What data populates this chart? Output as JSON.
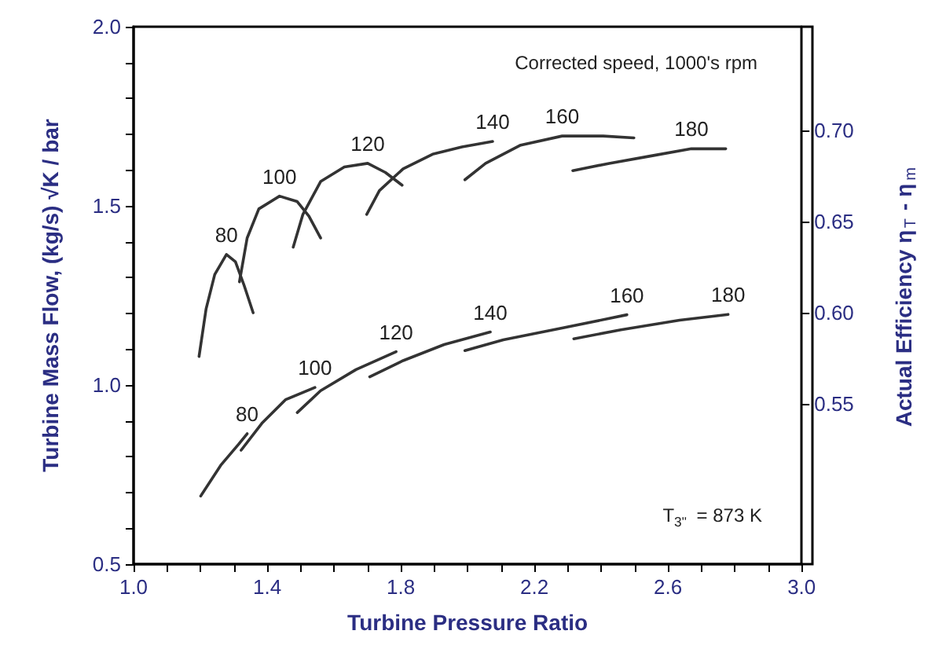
{
  "chart_data": {
    "type": "line",
    "xlabel": "Turbine Pressure Ratio",
    "ylabel": "Turbine Mass Flow, (kg/s) √K / bar",
    "y2label": "Actual Efficiency η$_{T}$ - η$_{m}$",
    "xlim": [
      1.0,
      3.0
    ],
    "ylim": [
      0.5,
      2.0
    ],
    "y2lim": [
      0.462,
      0.757
    ],
    "xticks": [
      {
        "value": 1.0,
        "label": "1.0"
      },
      {
        "value": 1.1,
        "label": null
      },
      {
        "value": 1.2,
        "label": null
      },
      {
        "value": 1.3,
        "label": null
      },
      {
        "value": 1.4,
        "label": "1.4"
      },
      {
        "value": 1.5,
        "label": null
      },
      {
        "value": 1.6,
        "label": null
      },
      {
        "value": 1.7,
        "label": null
      },
      {
        "value": 1.8,
        "label": "1.8"
      },
      {
        "value": 1.9,
        "label": null
      },
      {
        "value": 2.0,
        "label": null
      },
      {
        "value": 2.1,
        "label": null
      },
      {
        "value": 2.2,
        "label": "2.2"
      },
      {
        "value": 2.3,
        "label": null
      },
      {
        "value": 2.4,
        "label": null
      },
      {
        "value": 2.5,
        "label": null
      },
      {
        "value": 2.6,
        "label": "2.6"
      },
      {
        "value": 2.7,
        "label": null
      },
      {
        "value": 2.8,
        "label": null
      },
      {
        "value": 2.9,
        "label": null
      },
      {
        "value": 3.0,
        "label": "3.0"
      }
    ],
    "yticks": [
      {
        "value": 0.5,
        "label": "0.5"
      },
      {
        "value": 0.6,
        "label": null
      },
      {
        "value": 0.7,
        "label": null
      },
      {
        "value": 0.8,
        "label": null
      },
      {
        "value": 0.9,
        "label": null
      },
      {
        "value": 1.0,
        "label": "1.0"
      },
      {
        "value": 1.1,
        "label": null
      },
      {
        "value": 1.2,
        "label": null
      },
      {
        "value": 1.3,
        "label": null
      },
      {
        "value": 1.4,
        "label": null
      },
      {
        "value": 1.5,
        "label": "1.5"
      },
      {
        "value": 1.6,
        "label": null
      },
      {
        "value": 1.7,
        "label": null
      },
      {
        "value": 1.8,
        "label": null
      },
      {
        "value": 1.9,
        "label": null
      },
      {
        "value": 2.0,
        "label": "2.0"
      }
    ],
    "y2ticks": [
      {
        "value": 0.55,
        "label": "0.55"
      },
      {
        "value": 0.6,
        "label": "0.60"
      },
      {
        "value": 0.65,
        "label": "0.65"
      },
      {
        "value": 0.7,
        "label": "0.70"
      }
    ],
    "grid": false,
    "legend": false,
    "marker": "none",
    "line_style": "solid",
    "annotations": [
      "Corrected speed, 1000's rpm",
      "T$_{3\"}$ = 873 K"
    ],
    "series": [
      {
        "name": "80",
        "axis": "y2",
        "color": "#333333",
        "x": [
          1.196,
          1.217,
          1.243,
          1.278,
          1.305,
          1.331,
          1.358
        ],
        "values": [
          0.576,
          0.602,
          0.621,
          0.632,
          0.628,
          0.615,
          0.6
        ]
      },
      {
        "name": "100",
        "axis": "y2",
        "color": "#333333",
        "x": [
          1.317,
          1.34,
          1.375,
          1.437,
          1.49,
          1.525,
          1.56
        ],
        "values": [
          0.617,
          0.641,
          0.657,
          0.664,
          0.661,
          0.653,
          0.641
        ]
      },
      {
        "name": "120",
        "axis": "y2",
        "color": "#333333",
        "x": [
          1.478,
          1.507,
          1.56,
          1.631,
          1.701,
          1.754,
          1.804
        ],
        "values": [
          0.636,
          0.654,
          0.672,
          0.68,
          0.682,
          0.677,
          0.67
        ]
      },
      {
        "name": "140",
        "axis": "y2",
        "color": "#333333",
        "x": [
          1.698,
          1.736,
          1.807,
          1.895,
          1.983,
          2.075
        ],
        "values": [
          0.654,
          0.667,
          0.679,
          0.687,
          0.691,
          0.694
        ]
      },
      {
        "name": "160",
        "axis": "y2",
        "color": "#333333",
        "x": [
          1.992,
          2.054,
          2.159,
          2.283,
          2.406,
          2.498
        ],
        "values": [
          0.673,
          0.682,
          0.692,
          0.697,
          0.697,
          0.696
        ]
      },
      {
        "name": "180",
        "axis": "y2",
        "color": "#333333",
        "x": [
          2.315,
          2.424,
          2.547,
          2.67,
          2.773
        ],
        "values": [
          0.678,
          0.682,
          0.686,
          0.69,
          0.69
        ]
      },
      {
        "name": "80",
        "color": "#333333",
        "x": [
          1.201,
          1.261,
          1.314,
          1.34
        ],
        "values": [
          0.69,
          0.776,
          0.834,
          0.864
        ]
      },
      {
        "name": "100",
        "color": "#333333",
        "x": [
          1.322,
          1.384,
          1.455,
          1.543
        ],
        "values": [
          0.818,
          0.893,
          0.959,
          0.993
        ]
      },
      {
        "name": "120",
        "color": "#333333",
        "x": [
          1.49,
          1.56,
          1.666,
          1.786
        ],
        "values": [
          0.923,
          0.984,
          1.043,
          1.093
        ]
      },
      {
        "name": "140",
        "color": "#333333",
        "x": [
          1.707,
          1.807,
          1.93,
          2.068
        ],
        "values": [
          1.023,
          1.068,
          1.113,
          1.148
        ]
      },
      {
        "name": "160",
        "color": "#333333",
        "x": [
          1.992,
          2.107,
          2.283,
          2.477
        ],
        "values": [
          1.096,
          1.126,
          1.159,
          1.196
        ]
      },
      {
        "name": "180",
        "color": "#333333",
        "x": [
          2.318,
          2.459,
          2.635,
          2.78
        ],
        "values": [
          1.129,
          1.154,
          1.181,
          1.197
        ]
      }
    ]
  }
}
